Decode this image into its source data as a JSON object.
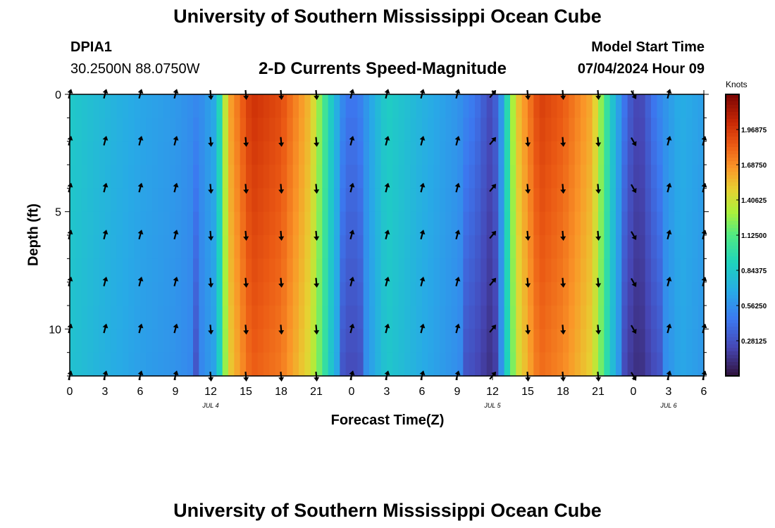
{
  "header": {
    "title": "University of Southern Mississippi Ocean Cube",
    "station_id": "DPIA1",
    "station_coords": "30.2500N  88.0750W",
    "subtitle": "2-D Currents Speed-Magnitude",
    "model_start_label": "Model Start Time",
    "model_start_value": "07/04/2024 Hour 09"
  },
  "footer": {
    "title": "University of Southern Mississippi Ocean Cube"
  },
  "chart_data": {
    "type": "heatmap",
    "title": "2-D Currents Speed-Magnitude",
    "xlabel": "Forecast Time(Z)",
    "ylabel": "Depth (ft)",
    "colorbar_label": "Knots",
    "colorbar_ticks": [
      "1.96875",
      "1.68750",
      "1.40625",
      "1.12500",
      "0.84375",
      "0.56250",
      "0.28125"
    ],
    "colorbar_tick_values": [
      1.96875,
      1.6875,
      1.40625,
      1.125,
      0.84375,
      0.5625,
      0.28125
    ],
    "color_range": [
      0,
      2.25
    ],
    "xlim": [
      0,
      54
    ],
    "ylim": [
      0,
      12
    ],
    "x_tick_values": [
      0,
      3,
      6,
      9,
      12,
      15,
      18,
      21,
      24,
      27,
      30,
      33,
      36,
      39,
      42,
      45,
      48,
      51,
      54
    ],
    "x_tick_labels": [
      "0",
      "3",
      "6",
      "9",
      "12",
      "15",
      "18",
      "21",
      "0",
      "3",
      "6",
      "9",
      "12",
      "15",
      "18",
      "21",
      "0",
      "3",
      "6"
    ],
    "y_tick_values": [
      0,
      5,
      10
    ],
    "y_tick_labels": [
      "0",
      "5",
      "10"
    ],
    "date_markers": [
      {
        "hour": 12,
        "label": "JUL 4"
      },
      {
        "hour": 36,
        "label": "JUL 5"
      },
      {
        "hour": 51,
        "label": "JUL 6"
      }
    ],
    "time_hours": [
      0,
      3,
      6,
      9,
      12,
      15,
      18,
      21,
      24,
      27,
      30,
      33,
      36,
      39,
      42,
      45,
      48,
      51,
      54
    ],
    "depth_ft": [
      0,
      2,
      4,
      6,
      8,
      10,
      12
    ],
    "speed_knots_profile": [
      {
        "hour": 0,
        "speed": 0.85
      },
      {
        "hour": 3,
        "speed": 0.75
      },
      {
        "hour": 6,
        "speed": 0.66
      },
      {
        "hour": 9,
        "speed": 0.6
      },
      {
        "hour": 11,
        "speed": 0.52
      },
      {
        "hour": 12.5,
        "speed": 0.7
      },
      {
        "hour": 13.5,
        "speed": 1.6
      },
      {
        "hour": 15.5,
        "speed": 2.0
      },
      {
        "hour": 18,
        "speed": 1.9
      },
      {
        "hour": 20.5,
        "speed": 1.55
      },
      {
        "hour": 22,
        "speed": 0.95
      },
      {
        "hour": 23.5,
        "speed": 0.45
      },
      {
        "hour": 24.5,
        "speed": 0.45
      },
      {
        "hour": 26,
        "speed": 0.72
      },
      {
        "hour": 27,
        "speed": 0.88
      },
      {
        "hour": 30,
        "speed": 0.72
      },
      {
        "hour": 33,
        "speed": 0.58
      },
      {
        "hour": 34.5,
        "speed": 0.45
      },
      {
        "hour": 36,
        "speed": 0.22
      },
      {
        "hour": 36.8,
        "speed": 0.62
      },
      {
        "hour": 38,
        "speed": 1.5
      },
      {
        "hour": 40,
        "speed": 1.95
      },
      {
        "hour": 42,
        "speed": 1.85
      },
      {
        "hour": 44.5,
        "speed": 1.6
      },
      {
        "hour": 46,
        "speed": 0.9
      },
      {
        "hour": 47.5,
        "speed": 0.35
      },
      {
        "hour": 48.5,
        "speed": 0.2
      },
      {
        "hour": 50,
        "speed": 0.5
      },
      {
        "hour": 52,
        "speed": 0.7
      },
      {
        "hour": 54,
        "speed": 0.62
      }
    ],
    "arrow_directions_deg": [
      {
        "hour": 0,
        "direction": 15
      },
      {
        "hour": 3,
        "direction": 15
      },
      {
        "hour": 6,
        "direction": 15
      },
      {
        "hour": 9,
        "direction": 15
      },
      {
        "hour": 12,
        "direction": 175
      },
      {
        "hour": 15,
        "direction": 175
      },
      {
        "hour": 18,
        "direction": 175
      },
      {
        "hour": 21,
        "direction": 175
      },
      {
        "hour": 24,
        "direction": 15
      },
      {
        "hour": 27,
        "direction": 15
      },
      {
        "hour": 30,
        "direction": 15
      },
      {
        "hour": 33,
        "direction": 15
      },
      {
        "hour": 36,
        "direction": 40
      },
      {
        "hour": 39,
        "direction": 175
      },
      {
        "hour": 42,
        "direction": 175
      },
      {
        "hour": 45,
        "direction": 175
      },
      {
        "hour": 48,
        "direction": 150
      },
      {
        "hour": 51,
        "direction": 15
      },
      {
        "hour": 54,
        "direction": 15
      }
    ],
    "arrow_depths_ft": [
      0,
      2,
      4,
      6,
      8,
      10,
      12
    ]
  }
}
